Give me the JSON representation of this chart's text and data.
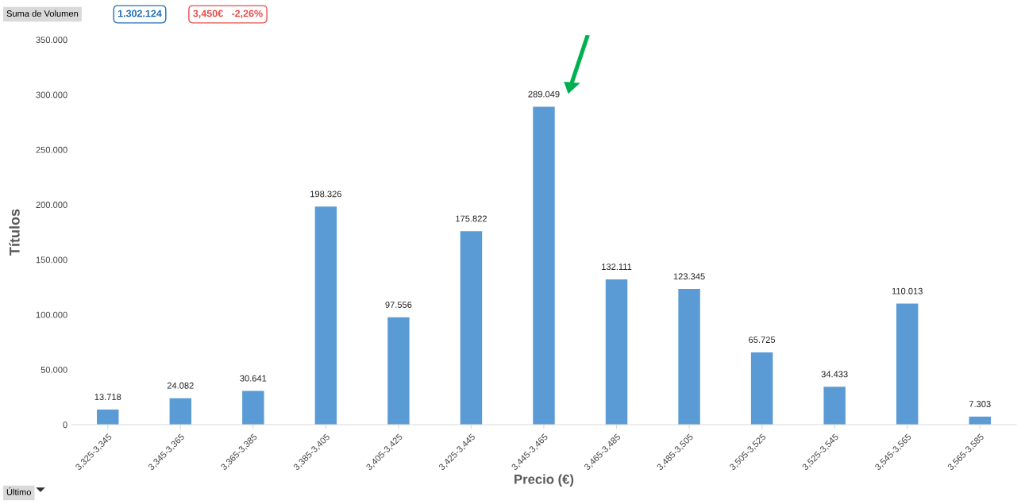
{
  "chart_data": {
    "type": "bar",
    "xlabel": "Precio (€)",
    "ylabel": "Títulos",
    "categories": [
      "3,325-3,345",
      "3,345-3,365",
      "3,365-3,385",
      "3,385-3,405",
      "3,405-3,425",
      "3,425-3,445",
      "3,445-3,465",
      "3,465-3,485",
      "3,485-3,505",
      "3,505-3,525",
      "3,525-3,545",
      "3,545-3,565",
      "3,565-3,585"
    ],
    "values": [
      13718,
      24082,
      30641,
      198326,
      97556,
      175822,
      289049,
      132111,
      123345,
      65725,
      34433,
      110013,
      7303
    ],
    "value_labels": [
      "13.718",
      "24.082",
      "30.641",
      "198.326",
      "97.556",
      "175.822",
      "289.049",
      "132.111",
      "123.345",
      "65.725",
      "34.433",
      "110.013",
      "7.303"
    ],
    "color": "#5b9bd5",
    "ylim": [
      0,
      350000
    ],
    "yticks": [
      {
        "value": 0,
        "label": "0"
      },
      {
        "value": 50000,
        "label": "50.000"
      },
      {
        "value": 100000,
        "label": "100.000"
      },
      {
        "value": 150000,
        "label": "150.000"
      },
      {
        "value": 200000,
        "label": "200.000"
      },
      {
        "value": 250000,
        "label": "250.000"
      },
      {
        "value": 300000,
        "label": "300.000"
      },
      {
        "value": 350000,
        "label": "350.000"
      }
    ],
    "grid": false,
    "annotations": [
      "Suma de Volumen",
      "1.302.124",
      "3,450€   -2,26%",
      "Último"
    ]
  }
}
